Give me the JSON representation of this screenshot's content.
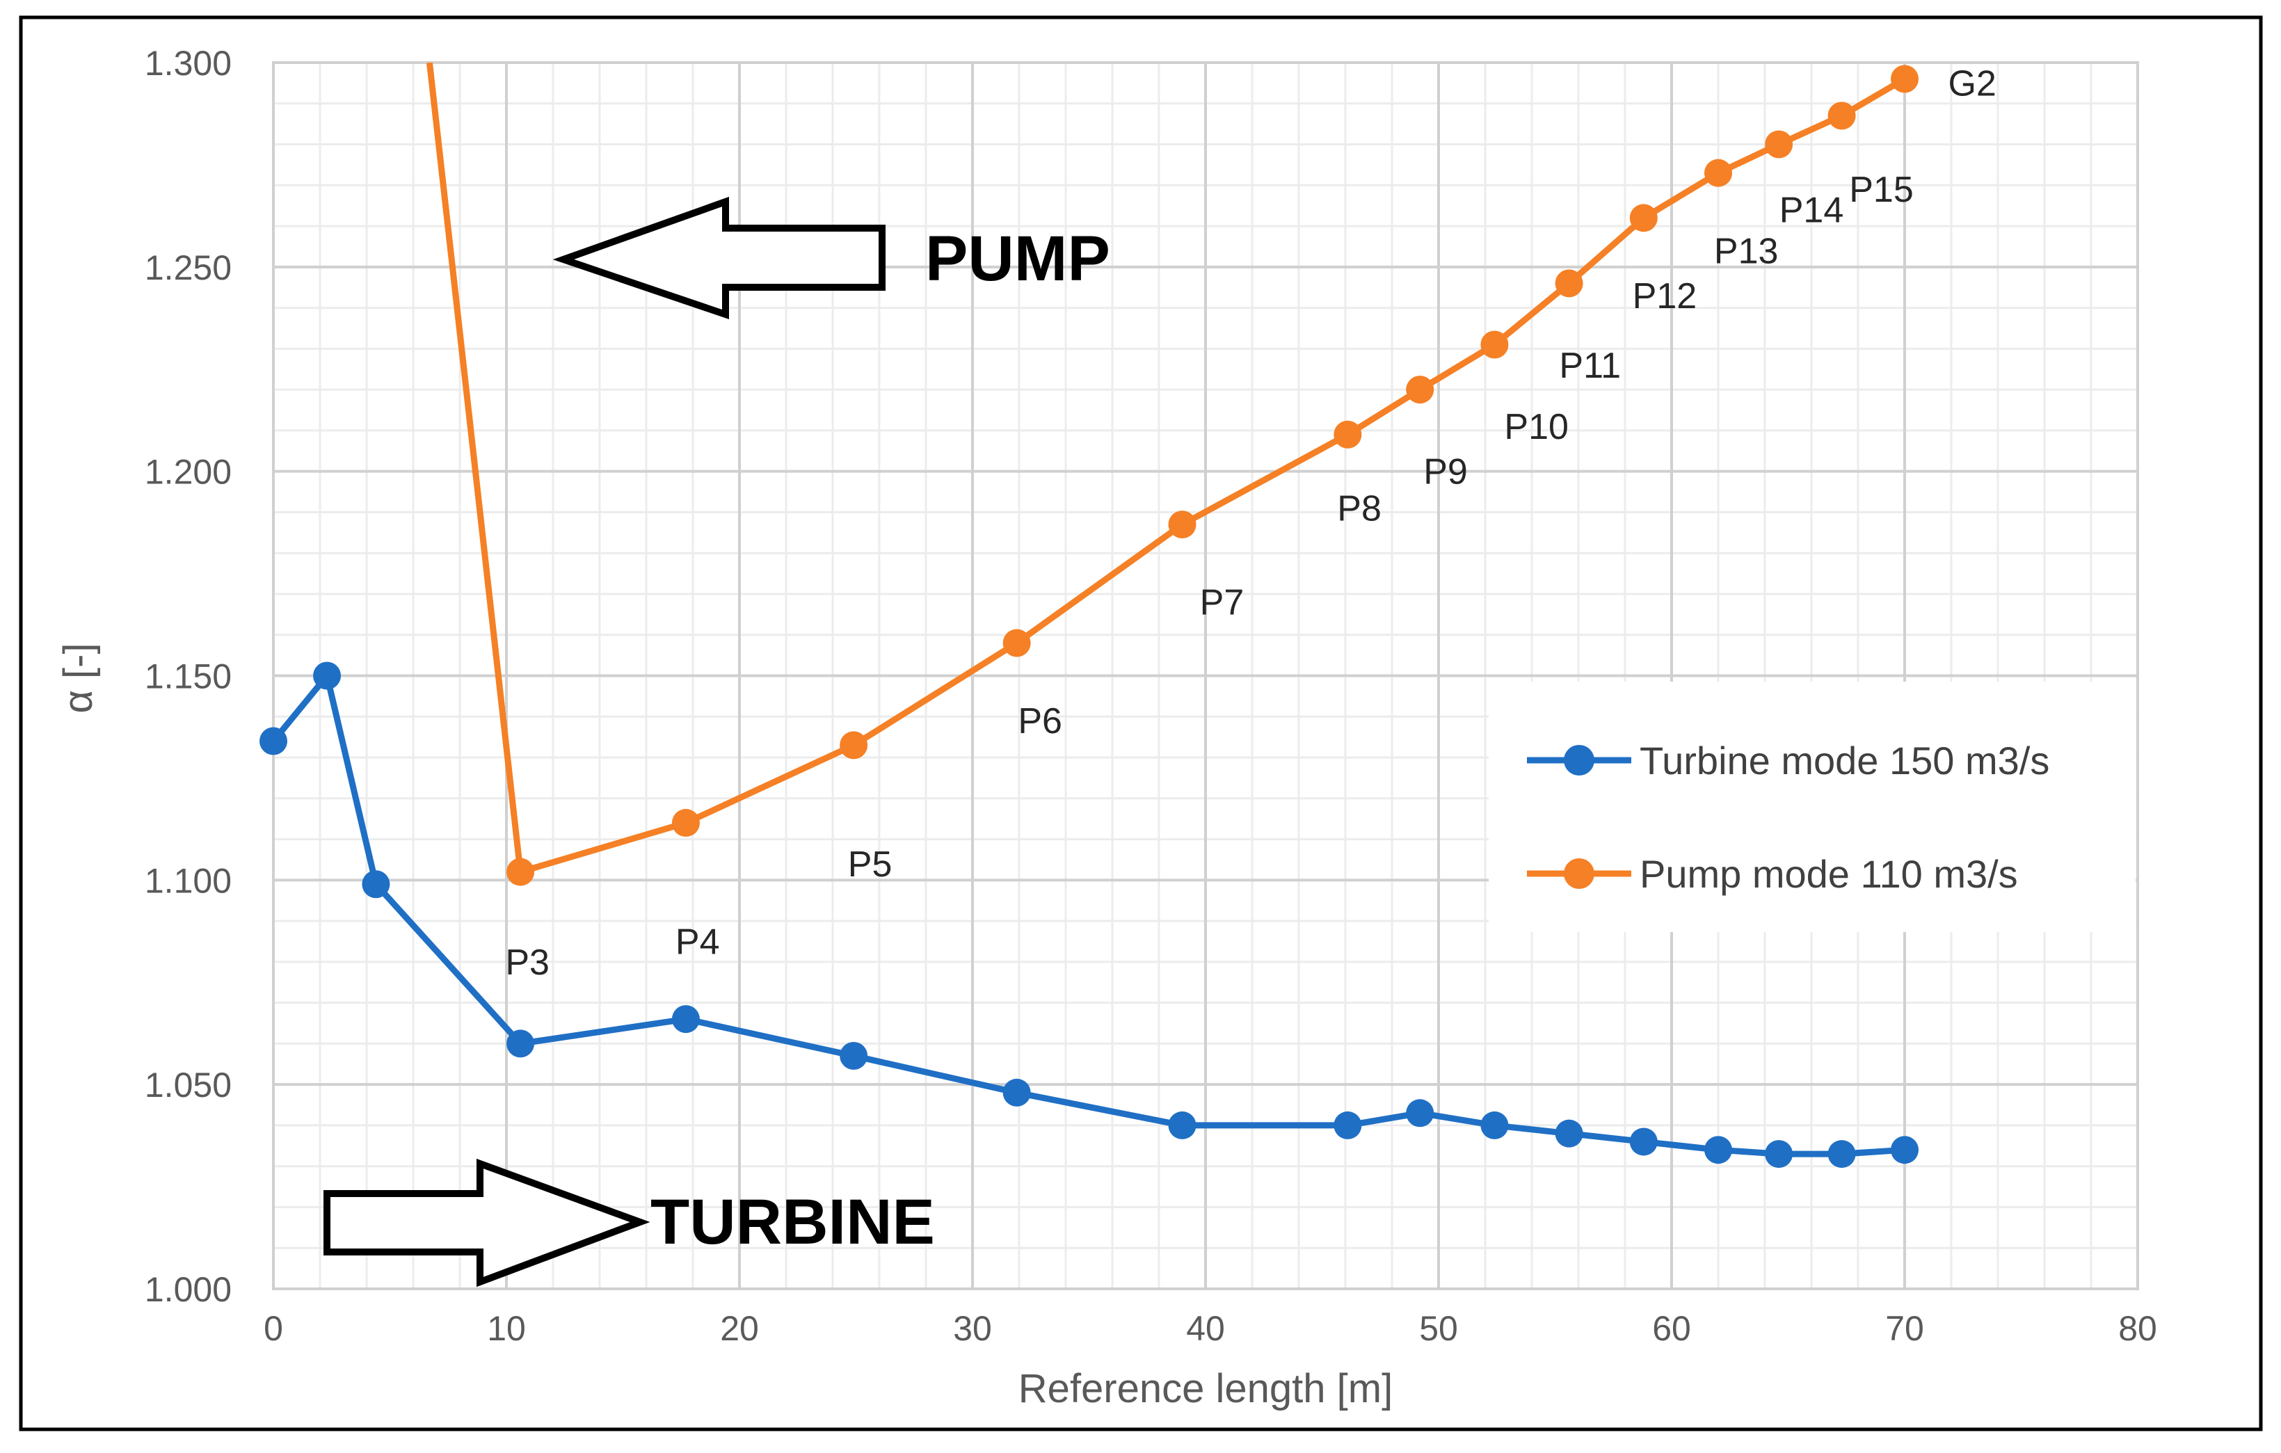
{
  "chart_data": {
    "type": "line",
    "title": "",
    "xlabel": "Reference length [m]",
    "ylabel": "α [-]",
    "xlim": [
      0,
      80
    ],
    "ylim": [
      1.0,
      1.3
    ],
    "x_ticks": [
      "0",
      "10",
      "20",
      "30",
      "40",
      "50",
      "60",
      "70",
      "80"
    ],
    "y_ticks": [
      "1.000",
      "1.050",
      "1.100",
      "1.150",
      "1.200",
      "1.250",
      "1.300"
    ],
    "grid": "major and minor",
    "legend_position": "right",
    "series": [
      {
        "name": "Turbine mode 150 m3/s",
        "color": "#1F6FC5",
        "x": [
          0,
          2.3,
          4.4,
          10.6,
          17.7,
          24.9,
          31.9,
          39.0,
          46.1,
          49.2,
          52.4,
          55.6,
          58.8,
          62.0,
          64.6,
          67.3,
          70.0
        ],
        "y": [
          1.134,
          1.15,
          1.099,
          1.06,
          1.066,
          1.057,
          1.048,
          1.04,
          1.04,
          1.043,
          1.04,
          1.038,
          1.036,
          1.034,
          1.033,
          1.033,
          1.034
        ]
      },
      {
        "name": "Pump mode 110 m3/s",
        "color": "#F58025",
        "x": [
          6.7,
          10.6,
          17.7,
          24.9,
          31.9,
          39.0,
          46.1,
          49.2,
          52.4,
          55.6,
          58.8,
          62.0,
          64.6,
          67.3,
          70.0
        ],
        "y": [
          1.3,
          1.102,
          1.114,
          1.133,
          1.158,
          1.187,
          1.209,
          1.22,
          1.231,
          1.246,
          1.262,
          1.273,
          1.28,
          1.287,
          1.296
        ],
        "markers_from_index": 1
      }
    ],
    "annotations": [
      {
        "text": "P3",
        "x": 10.9,
        "y": 1.08
      },
      {
        "text": "P4",
        "x": 18.2,
        "y": 1.085
      },
      {
        "text": "P5",
        "x": 25.6,
        "y": 1.104
      },
      {
        "text": "P6",
        "x": 32.9,
        "y": 1.139
      },
      {
        "text": "P7",
        "x": 40.7,
        "y": 1.168
      },
      {
        "text": "P8",
        "x": 46.6,
        "y": 1.191
      },
      {
        "text": "P9",
        "x": 50.3,
        "y": 1.2
      },
      {
        "text": "P10",
        "x": 54.2,
        "y": 1.211
      },
      {
        "text": "P11",
        "x": 56.5,
        "y": 1.226
      },
      {
        "text": "P12",
        "x": 59.7,
        "y": 1.243
      },
      {
        "text": "P13",
        "x": 63.2,
        "y": 1.254
      },
      {
        "text": "P14",
        "x": 66.0,
        "y": 1.264
      },
      {
        "text": "P15",
        "x": 69.0,
        "y": 1.269
      },
      {
        "text": "G2",
        "x": 72.9,
        "y": 1.295
      }
    ],
    "mode_labels": {
      "pump": "PUMP",
      "turbine": "TURBINE"
    }
  }
}
